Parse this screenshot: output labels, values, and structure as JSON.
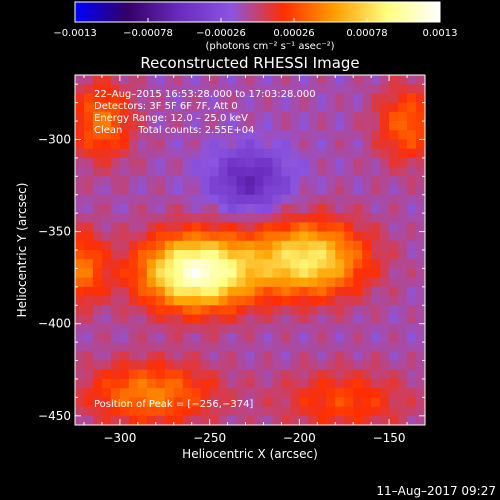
{
  "chart_data": {
    "type": "heatmap",
    "title": "Reconstructed RHESSI Image",
    "xlabel": "Heliocentric X (arcsec)",
    "ylabel": "Heliocentric Y (arcsec)",
    "xlim": [
      -325,
      -130
    ],
    "ylim": [
      -455,
      -265
    ],
    "xticks": [
      -300,
      -250,
      -200,
      -150
    ],
    "xtick_labels": [
      "−300",
      "−250",
      "−200",
      "−150"
    ],
    "yticks": [
      -300,
      -350,
      -400,
      -450
    ],
    "ytick_labels": [
      "−300",
      "−350",
      "−400",
      "−450"
    ],
    "colorbar": {
      "min": -0.0013,
      "max": 0.0013,
      "ticks": [
        -0.0013,
        -0.00078,
        -0.00026,
        0.00026,
        0.00078,
        0.0013
      ],
      "tick_labels": [
        "−0.0013",
        "−0.00078",
        "−0.00026",
        "0.00026",
        "0.00078",
        "0.0013"
      ],
      "unit_label": "(photons cm⁻² s⁻¹ asec⁻²)",
      "colors": [
        "#0000ff",
        "#330066",
        "#6a2bbf",
        "#8a55e0",
        "#ff2e00",
        "#ffa000",
        "#ffff80",
        "#ffffff"
      ]
    },
    "info": [
      "22–Aug–2015 16:53:28.000 to 17:03:28.000",
      "Detectors: 3F 5F 6F 7F, Att 0",
      "Energy Range: 12.0 – 25.0 keV",
      "Clean     Total counts: 2.55E+04"
    ],
    "peak_text": "Position of Peak = [−256,−374]",
    "peak": [
      -256,
      -374
    ],
    "sources": [
      {
        "x": -257,
        "y": -372,
        "amp": 0.0013,
        "sx": 22,
        "sy": 14
      },
      {
        "x": -195,
        "y": -365,
        "amp": 0.00095,
        "sx": 22,
        "sy": 14
      },
      {
        "x": -228,
        "y": -322,
        "amp": -0.0005,
        "sx": 15,
        "sy": 12
      },
      {
        "x": -310,
        "y": -290,
        "amp": 0.0005,
        "sx": 12,
        "sy": 15
      },
      {
        "x": -140,
        "y": -292,
        "amp": 0.00045,
        "sx": 12,
        "sy": 15
      },
      {
        "x": -283,
        "y": -438,
        "amp": 0.00055,
        "sx": 25,
        "sy": 12
      },
      {
        "x": -175,
        "y": -442,
        "amp": 0.00035,
        "sx": 25,
        "sy": 12
      },
      {
        "x": -322,
        "y": -370,
        "amp": 0.0005,
        "sx": 10,
        "sy": 14
      }
    ],
    "background_level": -0.0001
  },
  "footer": {
    "timestamp": "11–Aug–2017 09:27"
  }
}
